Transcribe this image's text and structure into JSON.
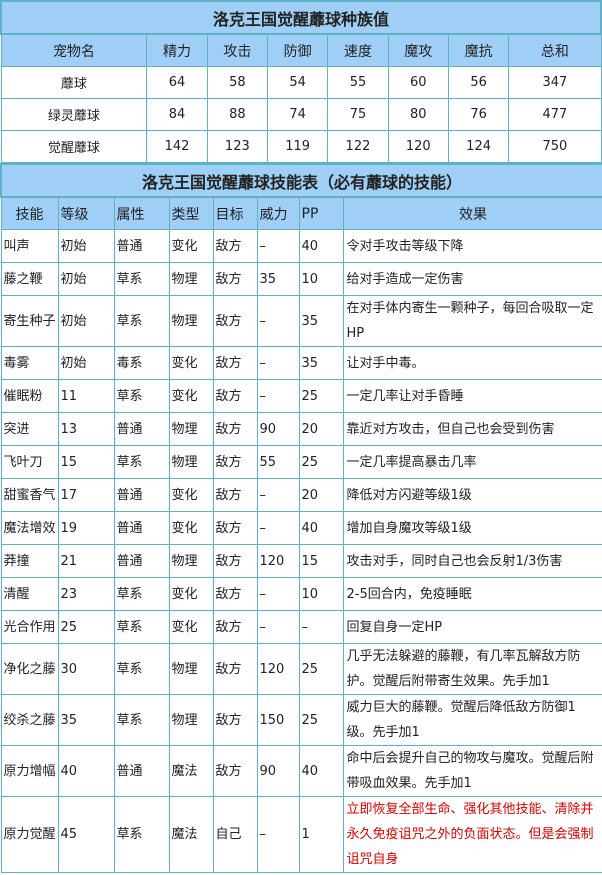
{
  "stats_table": {
    "title": "洛克王国觉醒蘼球种族值",
    "headers": [
      "宠物名",
      "精力",
      "攻击",
      "防御",
      "速度",
      "魔攻",
      "魔抗",
      "总和"
    ],
    "rows": [
      [
        "蘼球",
        "64",
        "58",
        "54",
        "55",
        "60",
        "56",
        "347"
      ],
      [
        "绿灵蘼球",
        "84",
        "88",
        "74",
        "75",
        "80",
        "76",
        "477"
      ],
      [
        "觉醒蘼球",
        "142",
        "123",
        "119",
        "122",
        "120",
        "124",
        "750"
      ]
    ]
  },
  "skills_table": {
    "title": "洛克王国觉醒蘼球技能表（必有蘼球的技能）",
    "headers": [
      "技能",
      "等级",
      "属性",
      "类型",
      "目标",
      "威力",
      "PP",
      "效果"
    ],
    "highlight_color": "#d40000",
    "rows": [
      [
        "叫声",
        "初始",
        "普通",
        "变化",
        "敌方",
        "–",
        "40",
        "令对手攻击等级下降"
      ],
      [
        "藤之鞭",
        "初始",
        "草系",
        "物理",
        "敌方",
        "35",
        "10",
        "给对手造成一定伤害"
      ],
      [
        "寄生种子",
        "初始",
        "草系",
        "物理",
        "敌方",
        "–",
        "35",
        "在对手体内寄生一颗种子，每回合吸取一定HP"
      ],
      [
        "毒雾",
        "初始",
        "毒系",
        "变化",
        "敌方",
        "–",
        "35",
        "让对手中毒。"
      ],
      [
        "催眠粉",
        "11",
        "草系",
        "变化",
        "敌方",
        "–",
        "25",
        "一定几率让对手昏睡"
      ],
      [
        "突进",
        "13",
        "普通",
        "物理",
        "敌方",
        "90",
        "20",
        "靠近对方攻击，但自己也会受到伤害"
      ],
      [
        "飞叶刀",
        "15",
        "草系",
        "物理",
        "敌方",
        "55",
        "25",
        "一定几率提高暴击几率"
      ],
      [
        "甜蜜香气",
        "17",
        "普通",
        "变化",
        "敌方",
        "–",
        "20",
        "降低对方闪避等级1级"
      ],
      [
        "魔法增效",
        "19",
        "普通",
        "变化",
        "敌方",
        "–",
        "40",
        "增加自身魔攻等级1级"
      ],
      [
        "莽撞",
        "21",
        "普通",
        "物理",
        "敌方",
        "120",
        "15",
        "攻击对手，同时自己也会反射1/3伤害"
      ],
      [
        "清醒",
        "23",
        "草系",
        "变化",
        "敌方",
        "–",
        "10",
        "2-5回合内，免疫睡眠"
      ],
      [
        "光合作用",
        "25",
        "草系",
        "变化",
        "敌方",
        "–",
        "–",
        "回复自身一定HP"
      ],
      [
        "净化之藤",
        "30",
        "草系",
        "物理",
        "敌方",
        "120",
        "25",
        "几乎无法躲避的藤鞭，有几率瓦解敌方防护。觉醒后附带寄生效果。先手加1"
      ],
      [
        "绞杀之藤",
        "35",
        "草系",
        "物理",
        "敌方",
        "150",
        "25",
        "威力巨大的藤鞭。觉醒后降低敌方防御1级。先手加1"
      ],
      [
        "原力增幅",
        "40",
        "普通",
        "魔法",
        "敌方",
        "90",
        "40",
        "命中后会提升自己的物攻与魔攻。觉醒后附带吸血效果。先手加1"
      ],
      [
        "原力觉醒",
        "45",
        "草系",
        "魔法",
        "自己",
        "–",
        "1",
        "立即恢复全部生命、强化其他技能、清除并永久免疫诅咒之外的负面状态。但是会强制诅咒自身"
      ]
    ],
    "highlighted_rows": [
      15
    ]
  }
}
